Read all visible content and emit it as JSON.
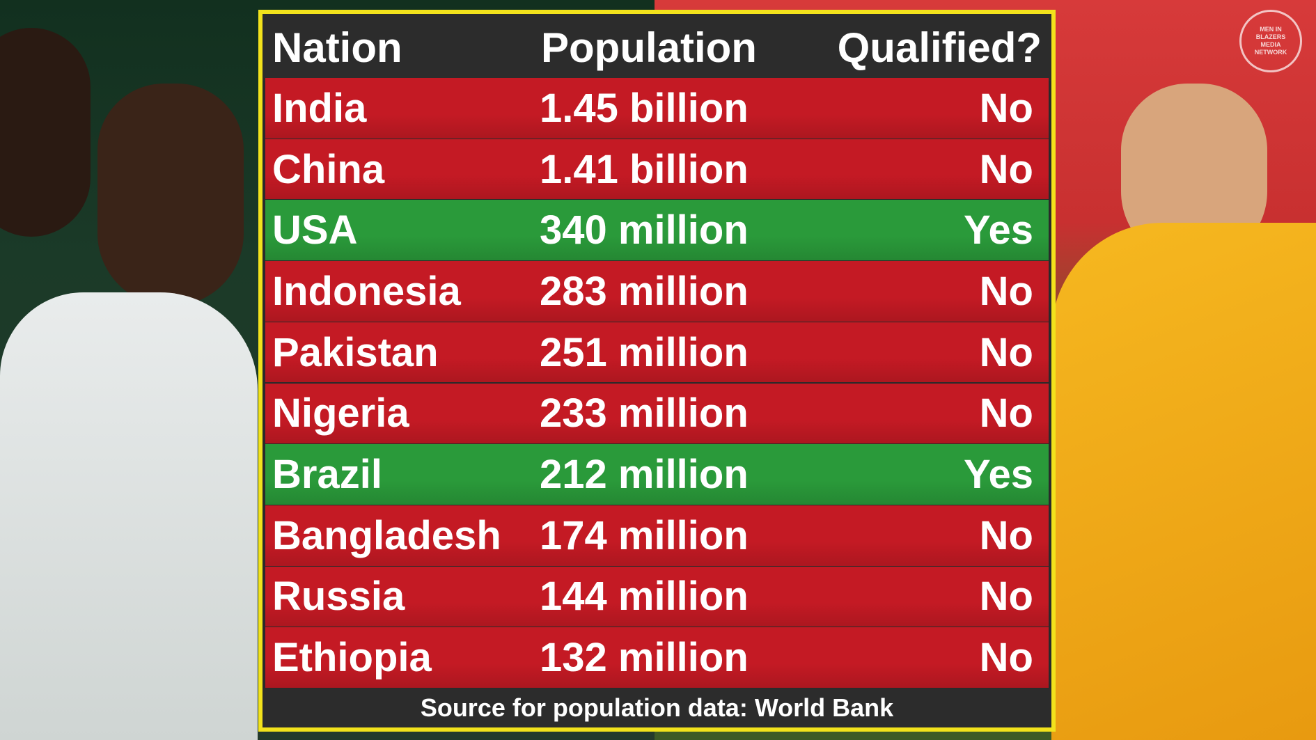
{
  "watermark": "MEN IN BLAZERS MEDIA NETWORK",
  "table": {
    "headers": [
      "Nation",
      "Population",
      "Qualified?"
    ],
    "rows": [
      [
        "India",
        "1.45 billion",
        "No"
      ],
      [
        "China",
        "1.41 billion",
        "No"
      ],
      [
        "USA",
        "340 million",
        "Yes"
      ],
      [
        "Indonesia",
        "283 million",
        "No"
      ],
      [
        "Pakistan",
        "251 million",
        "No"
      ],
      [
        "Nigeria",
        "233 million",
        "No"
      ],
      [
        "Brazil",
        "212 million",
        "Yes"
      ],
      [
        "Bangladesh",
        "174 million",
        "No"
      ],
      [
        "Russia",
        "144 million",
        "No"
      ],
      [
        "Ethiopia",
        "132 million",
        "No"
      ]
    ],
    "row_colors": [
      "#c41a24",
      "#c41a24",
      "#2a9a3a",
      "#c41a24",
      "#c41a24",
      "#c41a24",
      "#2a9a3a",
      "#c41a24",
      "#c41a24",
      "#c41a24"
    ],
    "source": "Source for population data: World Bank"
  }
}
